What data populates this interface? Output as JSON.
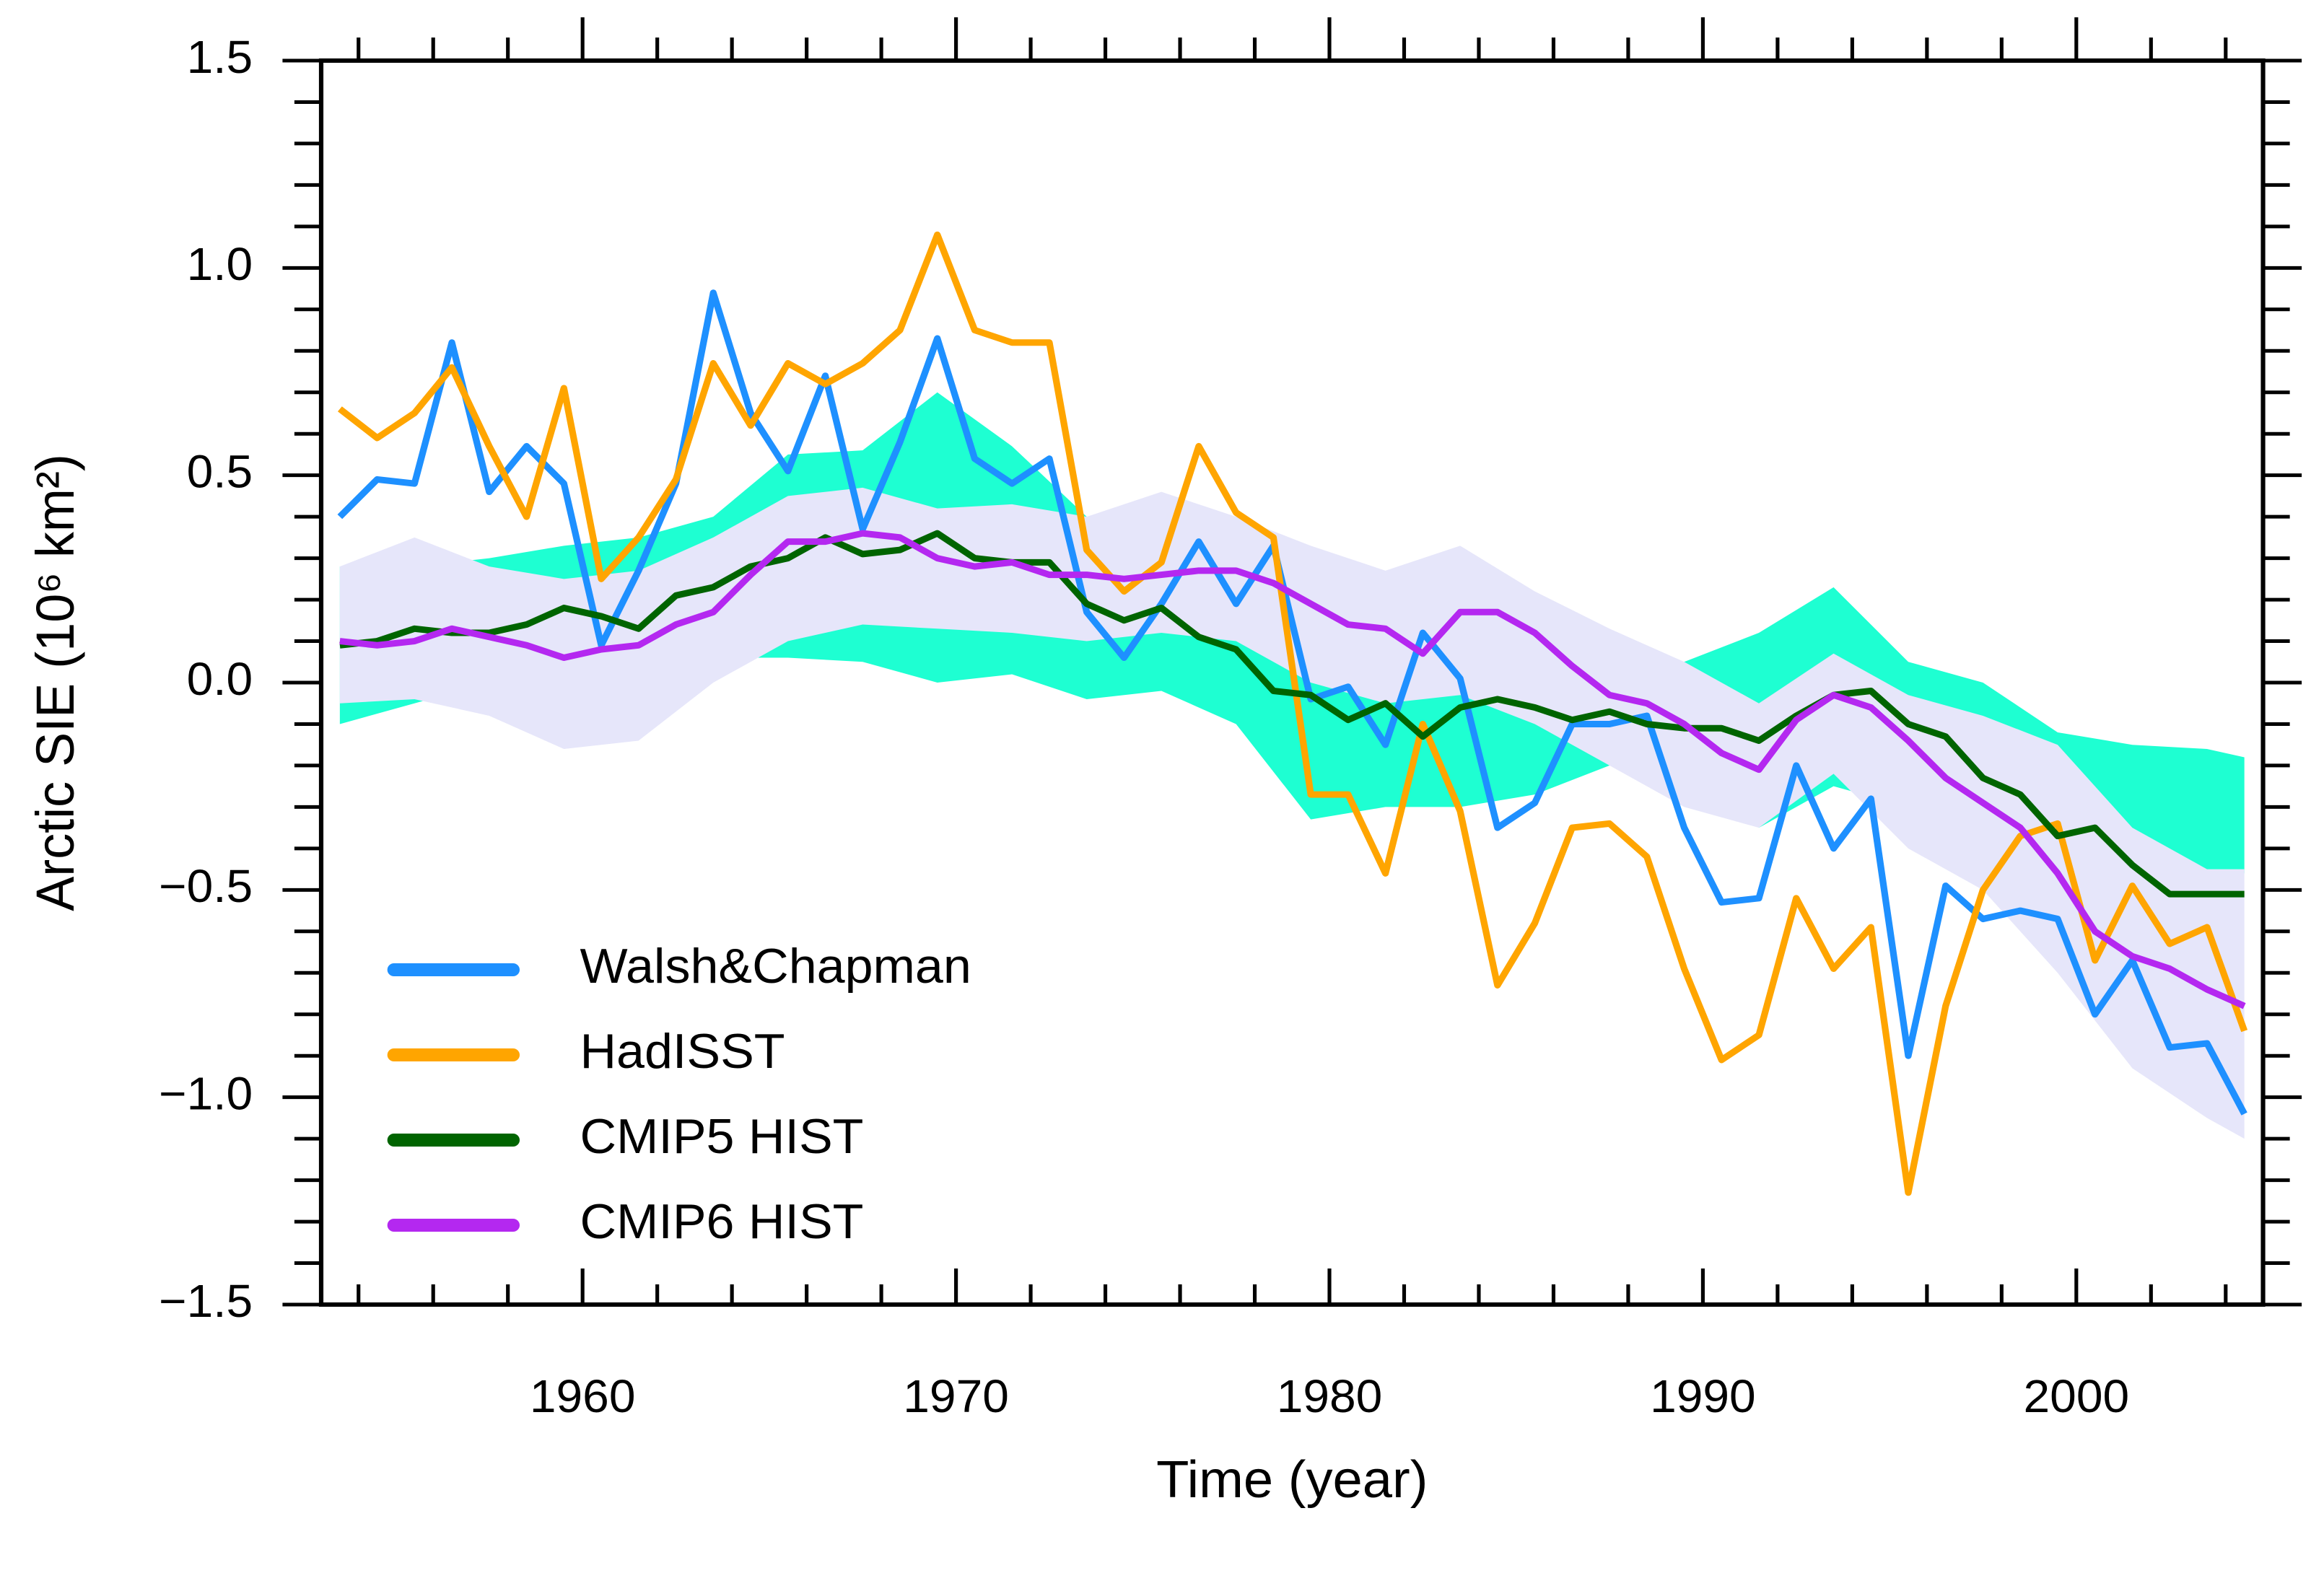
{
  "chart_data": {
    "type": "line",
    "xlabel": "Time (year)",
    "ylabel": "Arctic SIE (10⁶ km²)",
    "xlim": [
      1953,
      2005
    ],
    "ylim": [
      -1.5,
      1.5
    ],
    "xticks": [
      1960,
      1970,
      1980,
      1990,
      2000
    ],
    "xminorticks": [
      1954,
      1956,
      1958,
      1962,
      1964,
      1966,
      1968,
      1972,
      1974,
      1976,
      1978,
      1982,
      1984,
      1986,
      1988,
      1992,
      1994,
      1996,
      1998,
      2002,
      2004
    ],
    "yticks": [
      {
        "value": 1.5,
        "label": "1.5"
      },
      {
        "value": 1.0,
        "label": "1.0"
      },
      {
        "value": 0.5,
        "label": "0.5"
      },
      {
        "value": 0.0,
        "label": "0.0"
      },
      {
        "value": -0.5,
        "label": "−0.5"
      },
      {
        "value": -1.0,
        "label": "−1.0"
      },
      {
        "value": -1.5,
        "label": "−1.5"
      }
    ],
    "yminorticks": [
      1.4,
      1.3,
      1.2,
      1.1,
      0.9,
      0.8,
      0.7,
      0.6,
      0.4,
      0.3,
      0.2,
      0.1,
      -0.1,
      -0.2,
      -0.3,
      -0.4,
      -0.6,
      -0.7,
      -0.8,
      -0.9,
      -1.1,
      -1.2,
      -1.3,
      -1.4
    ],
    "legend": "lower left",
    "bands": [
      {
        "color": "#1effd2",
        "x": [
          1953.5,
          1955.5,
          1957.5,
          1959.5,
          1961.5,
          1963.5,
          1965.5,
          1967.5,
          1969.5,
          1971.5,
          1973.5,
          1975.5,
          1977.5,
          1979.5,
          1981.5,
          1983.5,
          1985.5,
          1987.5,
          1989.5,
          1991.5,
          1993.5,
          1995.5,
          1997.5,
          1999.5,
          2001.5,
          2003.5,
          2004.5
        ],
        "lower": [
          -0.1,
          -0.05,
          0.0,
          0.05,
          0.05,
          0.06,
          0.06,
          0.05,
          0.0,
          0.02,
          -0.04,
          -0.02,
          -0.1,
          -0.33,
          -0.3,
          -0.3,
          -0.27,
          -0.2,
          -0.25,
          -0.35,
          -0.25,
          -0.3,
          -0.25,
          -0.35,
          -0.43,
          -0.46,
          -0.46
        ],
        "upper": [
          0.28,
          0.28,
          0.3,
          0.33,
          0.35,
          0.4,
          0.55,
          0.56,
          0.7,
          0.57,
          0.4,
          0.35,
          0.3,
          0.05,
          0.0,
          0.0,
          -0.03,
          -0.03,
          0.05,
          0.12,
          0.23,
          0.05,
          0.0,
          -0.12,
          -0.15,
          -0.16,
          -0.18
        ]
      },
      {
        "color": "#e6e6fa",
        "x": [
          1953.5,
          1955.5,
          1957.5,
          1959.5,
          1961.5,
          1963.5,
          1965.5,
          1967.5,
          1969.5,
          1971.5,
          1973.5,
          1975.5,
          1977.5,
          1979.5,
          1981.5,
          1983.5,
          1985.5,
          1987.5,
          1989.5,
          1991.5,
          1993.5,
          1995.5,
          1997.5,
          1999.5,
          2001.5,
          2003.5,
          2004.5
        ],
        "lower": [
          -0.05,
          -0.04,
          -0.08,
          -0.16,
          -0.14,
          0.0,
          0.1,
          0.14,
          0.13,
          0.12,
          0.1,
          0.12,
          0.1,
          0.0,
          -0.05,
          -0.03,
          -0.1,
          -0.2,
          -0.3,
          -0.35,
          -0.22,
          -0.4,
          -0.5,
          -0.7,
          -0.93,
          -1.05,
          -1.1
        ],
        "upper": [
          0.28,
          0.35,
          0.28,
          0.25,
          0.27,
          0.35,
          0.45,
          0.47,
          0.42,
          0.43,
          0.4,
          0.46,
          0.4,
          0.33,
          0.27,
          0.33,
          0.22,
          0.13,
          0.05,
          -0.05,
          0.07,
          -0.03,
          -0.08,
          -0.15,
          -0.35,
          -0.45,
          -0.45
        ]
      }
    ],
    "x": [
      1953.5,
      1954.5,
      1955.5,
      1956.5,
      1957.5,
      1958.5,
      1959.5,
      1960.5,
      1961.5,
      1962.5,
      1963.5,
      1964.5,
      1965.5,
      1966.5,
      1967.5,
      1968.5,
      1969.5,
      1970.5,
      1971.5,
      1972.5,
      1973.5,
      1974.5,
      1975.5,
      1976.5,
      1977.5,
      1978.5,
      1979.5,
      1980.5,
      1981.5,
      1982.5,
      1983.5,
      1984.5,
      1985.5,
      1986.5,
      1987.5,
      1988.5,
      1989.5,
      1990.5,
      1991.5,
      1992.5,
      1993.5,
      1994.5,
      1995.5,
      1996.5,
      1997.5,
      1998.5,
      1999.5,
      2000.5,
      2001.5,
      2002.5,
      2003.5,
      2004.5
    ],
    "series": [
      {
        "name": "Walsh&Chapman",
        "color": "#1e90ff",
        "values": [
          0.4,
          0.49,
          0.48,
          0.82,
          0.46,
          0.57,
          0.48,
          0.09,
          0.27,
          0.48,
          0.94,
          0.65,
          0.51,
          0.74,
          0.37,
          0.58,
          0.83,
          0.54,
          0.48,
          0.54,
          0.17,
          0.06,
          0.19,
          0.34,
          0.19,
          0.33,
          -0.04,
          -0.01,
          -0.15,
          0.12,
          0.01,
          -0.35,
          -0.29,
          -0.1,
          -0.1,
          -0.08,
          -0.35,
          -0.53,
          -0.52,
          -0.2,
          -0.4,
          -0.28,
          -0.9,
          -0.49,
          -0.57,
          -0.55,
          -0.57,
          -0.8,
          -0.67,
          -0.88,
          -0.87,
          -1.04
        ]
      },
      {
        "name": "HadISST",
        "color": "#ffa500",
        "values": [
          0.66,
          0.59,
          0.65,
          0.76,
          0.57,
          0.4,
          0.71,
          0.25,
          0.35,
          0.49,
          0.77,
          0.62,
          0.77,
          0.72,
          0.77,
          0.85,
          1.08,
          0.85,
          0.82,
          0.82,
          0.32,
          0.22,
          0.29,
          0.57,
          0.41,
          0.35,
          -0.27,
          -0.27,
          -0.46,
          -0.1,
          -0.31,
          -0.73,
          -0.58,
          -0.35,
          -0.34,
          -0.42,
          -0.69,
          -0.91,
          -0.85,
          -0.52,
          -0.69,
          -0.59,
          -1.23,
          -0.78,
          -0.5,
          -0.37,
          -0.34,
          -0.67,
          -0.49,
          -0.63,
          -0.59,
          -0.84
        ]
      },
      {
        "name": "CMIP5 HIST",
        "color": "#006400",
        "values": [
          0.09,
          0.1,
          0.13,
          0.12,
          0.12,
          0.14,
          0.18,
          0.16,
          0.13,
          0.21,
          0.23,
          0.28,
          0.3,
          0.35,
          0.31,
          0.32,
          0.36,
          0.3,
          0.29,
          0.29,
          0.19,
          0.15,
          0.18,
          0.11,
          0.08,
          -0.02,
          -0.03,
          -0.09,
          -0.05,
          -0.13,
          -0.06,
          -0.04,
          -0.06,
          -0.09,
          -0.07,
          -0.1,
          -0.11,
          -0.11,
          -0.14,
          -0.08,
          -0.03,
          -0.02,
          -0.1,
          -0.13,
          -0.23,
          -0.27,
          -0.37,
          -0.35,
          -0.44,
          -0.51,
          -0.51,
          -0.51
        ]
      },
      {
        "name": "CMIP6 HIST",
        "color": "#b428f0",
        "values": [
          0.1,
          0.09,
          0.1,
          0.13,
          0.11,
          0.09,
          0.06,
          0.08,
          0.09,
          0.14,
          0.17,
          0.26,
          0.34,
          0.34,
          0.36,
          0.35,
          0.3,
          0.28,
          0.29,
          0.26,
          0.26,
          0.25,
          0.26,
          0.27,
          0.27,
          0.24,
          0.19,
          0.14,
          0.13,
          0.07,
          0.17,
          0.17,
          0.12,
          0.04,
          -0.03,
          -0.05,
          -0.1,
          -0.17,
          -0.21,
          -0.09,
          -0.03,
          -0.06,
          -0.14,
          -0.23,
          -0.29,
          -0.35,
          -0.46,
          -0.6,
          -0.66,
          -0.69,
          -0.74,
          -0.78
        ]
      }
    ]
  }
}
